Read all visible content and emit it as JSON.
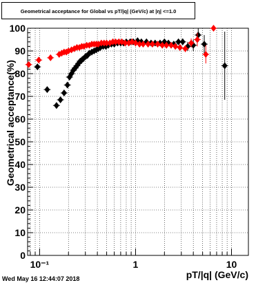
{
  "chart_data": {
    "type": "scatter",
    "title": "Geometrical acceptance for Global vs pT/|q| (GeV/c) at |η| <=1.0",
    "xlabel": "pT/|q| (GeV/c)",
    "ylabel": "Geometrical acceptance(%)",
    "xscale": "log",
    "xlim": [
      0.075,
      15
    ],
    "ylim": [
      0,
      100
    ],
    "yticks": [
      0,
      10,
      20,
      30,
      40,
      50,
      60,
      70,
      80,
      90,
      100
    ],
    "xtick_labels": [
      {
        "x": 0.1,
        "label": "10⁻¹"
      },
      {
        "x": 1,
        "label": "1"
      },
      {
        "x": 10,
        "label": "10"
      }
    ],
    "grid": true,
    "legend": "none",
    "series": [
      {
        "color": "#000000",
        "x": [
          0.095,
          0.12,
          0.15,
          0.165,
          0.18,
          0.195,
          0.205,
          0.215,
          0.225,
          0.235,
          0.245,
          0.255,
          0.265,
          0.275,
          0.285,
          0.3,
          0.315,
          0.33,
          0.35,
          0.37,
          0.39,
          0.41,
          0.43,
          0.46,
          0.49,
          0.52,
          0.56,
          0.6,
          0.65,
          0.7,
          0.75,
          0.8,
          0.88,
          0.95,
          1.05,
          1.15,
          1.3,
          1.45,
          1.6,
          1.8,
          2.0,
          2.2,
          2.5,
          2.8,
          3.1,
          3.5,
          4.0,
          4.5,
          5.2,
          8.5
        ],
        "y": [
          83,
          73,
          66,
          68.5,
          71.5,
          75,
          78.5,
          80,
          81.5,
          82.5,
          83.5,
          84.5,
          85.5,
          86,
          86.5,
          87.5,
          88,
          89,
          89.5,
          90,
          90.5,
          91,
          91.5,
          92,
          92,
          92.5,
          93,
          93,
          93.5,
          93.5,
          93.5,
          94,
          94,
          94,
          94.5,
          94,
          94,
          93.5,
          93.5,
          93.5,
          94,
          93.5,
          93,
          94,
          94,
          92,
          92.5,
          97,
          93,
          83.5
        ],
        "yerr": [
          0.5,
          0.5,
          0.5,
          0.5,
          0.5,
          0.5,
          0.5,
          0.5,
          0.5,
          0.5,
          0.5,
          0.5,
          0.5,
          0.5,
          0.5,
          0.5,
          0.5,
          0.5,
          0.5,
          0.5,
          0.5,
          0.5,
          0.5,
          0.5,
          0.5,
          0.5,
          0.5,
          0.5,
          0.5,
          0.5,
          0.5,
          0.5,
          0.5,
          0.5,
          0.5,
          0.5,
          0.5,
          0.5,
          0.5,
          0.5,
          0.5,
          0.8,
          1.0,
          1.0,
          1.5,
          2.0,
          2.5,
          3.0,
          4.0,
          15.0
        ]
      },
      {
        "color": "#ff0000",
        "x": [
          0.077,
          0.098,
          0.13,
          0.16,
          0.17,
          0.18,
          0.19,
          0.2,
          0.215,
          0.23,
          0.245,
          0.26,
          0.275,
          0.29,
          0.31,
          0.33,
          0.35,
          0.37,
          0.39,
          0.41,
          0.44,
          0.47,
          0.5,
          0.54,
          0.58,
          0.62,
          0.67,
          0.72,
          0.78,
          0.85,
          0.92,
          1.0,
          1.1,
          1.2,
          1.35,
          1.5,
          1.7,
          1.9,
          2.1,
          2.35,
          2.6,
          2.9,
          3.3,
          3.8,
          4.4,
          5.4,
          6.5
        ],
        "y": [
          84,
          86,
          87,
          88.5,
          89,
          89.5,
          89.5,
          90,
          90.5,
          91,
          91.5,
          91.5,
          92,
          92,
          92.5,
          92.5,
          93,
          93,
          93,
          93,
          93.5,
          93.5,
          93.5,
          93.5,
          94,
          94,
          94,
          94,
          93.5,
          93.5,
          94,
          93.5,
          93,
          93,
          93,
          93,
          93,
          92.5,
          92.5,
          92.5,
          92,
          91.5,
          91,
          93.5,
          95,
          88.5,
          100
        ],
        "yerr": [
          0.5,
          0.5,
          0.5,
          0.5,
          0.5,
          0.5,
          0.5,
          0.5,
          0.5,
          0.5,
          0.5,
          0.5,
          0.5,
          0.5,
          0.5,
          0.5,
          0.5,
          0.5,
          0.5,
          0.5,
          0.5,
          0.5,
          0.5,
          0.5,
          0.5,
          0.5,
          0.5,
          0.5,
          0.5,
          0.5,
          0.5,
          0.5,
          0.5,
          0.5,
          0.5,
          0.5,
          0.5,
          0.5,
          0.5,
          0.5,
          1.0,
          1.0,
          1.5,
          2.0,
          3.0,
          4.0,
          0.5
        ]
      }
    ]
  },
  "footer": {
    "timestamp": "Wed May 16 12:44:07 2018"
  }
}
